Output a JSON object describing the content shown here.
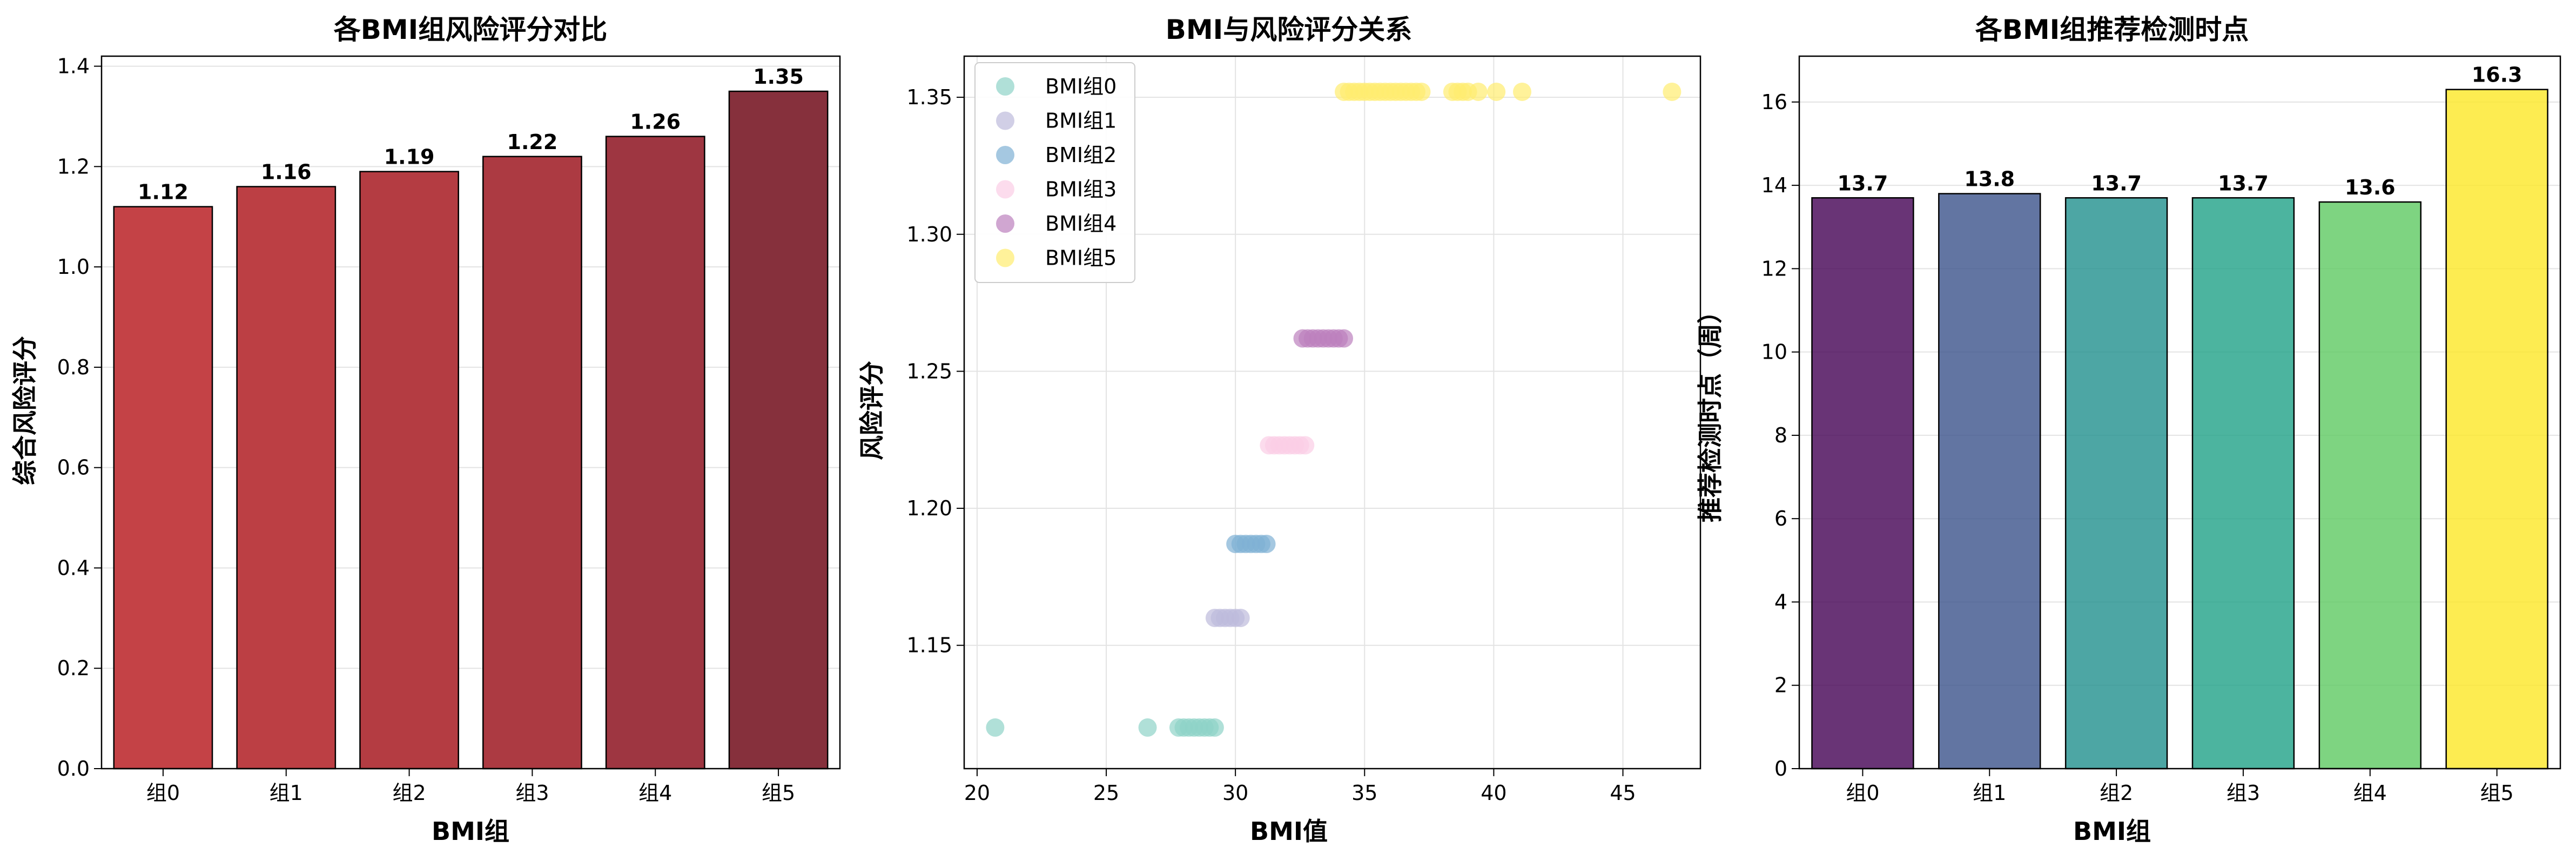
{
  "charts": [
    {
      "type": "bar",
      "title": "各BMI组风险评分对比",
      "xlabel": "BMI组",
      "ylabel": "综合风险评分",
      "categories": [
        "组0",
        "组1",
        "组2",
        "组3",
        "组4",
        "组5"
      ],
      "values": [
        1.12,
        1.16,
        1.19,
        1.22,
        1.26,
        1.35
      ],
      "data_labels": [
        "1.12",
        "1.16",
        "1.19",
        "1.22",
        "1.26",
        "1.35"
      ],
      "ylim": [
        0,
        1.42
      ],
      "yticks": [
        0.0,
        0.2,
        0.4,
        0.6,
        0.8,
        1.0,
        1.2,
        1.4
      ],
      "ytick_labels": [
        "0.0",
        "0.2",
        "0.4",
        "0.6",
        "0.8",
        "1.0",
        "1.2",
        "1.4"
      ],
      "colors": [
        "#c44246",
        "#bc3f44",
        "#b43c42",
        "#ac3a42",
        "#9e3641",
        "#86303c"
      ],
      "grid": "y"
    },
    {
      "type": "scatter",
      "title": "BMI与风险评分关系",
      "xlabel": "BMI值",
      "ylabel": "风险评分",
      "xlim": [
        19.5,
        48.0
      ],
      "ylim": [
        1.105,
        1.365
      ],
      "xticks": [
        20,
        25,
        30,
        35,
        40,
        45
      ],
      "xtick_labels": [
        "20",
        "25",
        "30",
        "35",
        "40",
        "45"
      ],
      "yticks": [
        1.15,
        1.2,
        1.25,
        1.3,
        1.35
      ],
      "ytick_labels": [
        "1.15",
        "1.20",
        "1.25",
        "1.30",
        "1.35"
      ],
      "grid": "both",
      "legend_position": "upper-left",
      "series": [
        {
          "name": "BMI组0",
          "color": "#8fd3c7",
          "y": 1.12,
          "x": [
            20.7,
            26.6,
            27.8,
            28.0,
            28.2,
            28.4,
            28.6,
            28.8,
            29.0,
            29.2
          ]
        },
        {
          "name": "BMI组1",
          "color": "#bebadb",
          "y": 1.16,
          "x": [
            29.2,
            29.4,
            29.6,
            29.8,
            30.0,
            30.2
          ]
        },
        {
          "name": "BMI组2",
          "color": "#7fb1d4",
          "y": 1.187,
          "x": [
            30.0,
            30.2,
            30.4,
            30.6,
            30.8,
            31.0,
            31.2
          ]
        },
        {
          "name": "BMI组3",
          "color": "#fbcde5",
          "y": 1.223,
          "x": [
            31.3,
            31.5,
            31.7,
            31.9,
            32.1,
            32.3,
            32.5,
            32.7
          ]
        },
        {
          "name": "BMI组4",
          "color": "#bc80bd",
          "y": 1.262,
          "x": [
            32.6,
            32.8,
            33.0,
            33.2,
            33.4,
            33.6,
            33.8,
            34.0,
            34.2
          ]
        },
        {
          "name": "BMI组5",
          "color": "#ffed6f",
          "y": 1.352,
          "x": [
            34.2,
            34.4,
            34.6,
            34.8,
            35.0,
            35.2,
            35.4,
            35.6,
            35.8,
            36.0,
            36.2,
            36.4,
            36.6,
            36.8,
            37.0,
            37.2,
            38.4,
            38.6,
            38.8,
            39.0,
            39.4,
            40.1,
            41.1,
            46.9
          ]
        }
      ]
    },
    {
      "type": "bar",
      "title": "各BMI组推荐检测时点",
      "xlabel": "BMI组",
      "ylabel": "推荐检测时点（周）",
      "categories": [
        "组0",
        "组1",
        "组2",
        "组3",
        "组4",
        "组5"
      ],
      "values": [
        13.7,
        13.8,
        13.7,
        13.7,
        13.6,
        16.3
      ],
      "data_labels": [
        "13.7",
        "13.8",
        "13.7",
        "13.7",
        "13.6",
        "16.3"
      ],
      "ylim": [
        0,
        17.1
      ],
      "yticks": [
        0,
        2,
        4,
        6,
        8,
        10,
        12,
        14,
        16
      ],
      "ytick_labels": [
        "0",
        "2",
        "4",
        "6",
        "8",
        "10",
        "12",
        "14",
        "16"
      ],
      "colors": [
        "#440154",
        "#3b528b",
        "#21908d",
        "#1fa187",
        "#5ec962",
        "#fde725"
      ],
      "grid": "y"
    }
  ]
}
